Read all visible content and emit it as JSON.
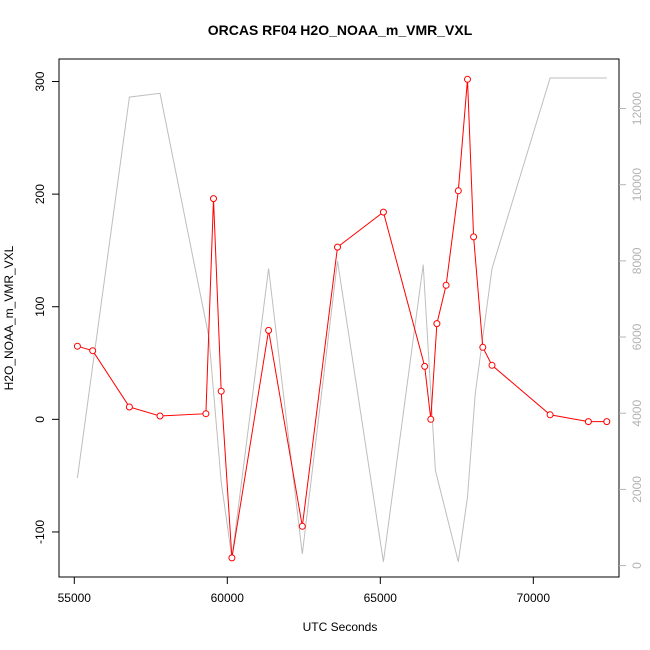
{
  "chart_data": {
    "type": "line",
    "title": "ORCAS RF04 H2O_NOAA_m_VMR_VXL",
    "xlabel": "UTC Seconds",
    "ylabel": "H2O_NOAA_m_VMR_VXL",
    "xlim": [
      54500,
      72800
    ],
    "ylim": [
      -140,
      320
    ],
    "y2lim": [
      -300,
      13300
    ],
    "x_ticks": [
      55000,
      60000,
      65000,
      70000
    ],
    "y_ticks": [
      -100,
      0,
      100,
      200,
      300
    ],
    "y2_ticks": [
      0,
      2000,
      4000,
      6000,
      8000,
      10000,
      12000
    ],
    "grid": false,
    "series": [
      {
        "axis": "left",
        "color": "#ff0000",
        "marker": "open-circle",
        "x": [
          55100,
          55600,
          56800,
          57800,
          59300,
          59550,
          59800,
          60150,
          61350,
          62450,
          63600,
          65100,
          66450,
          66650,
          66850,
          67150,
          67550,
          67850,
          68050,
          68350,
          68650,
          70550,
          71800,
          72400
        ],
        "y": [
          65,
          61,
          11,
          3,
          5,
          196,
          25,
          -123,
          79,
          -95,
          153,
          184,
          47,
          0,
          85,
          119,
          203,
          302,
          162,
          64,
          48,
          4,
          -2,
          -2
        ]
      },
      {
        "axis": "right",
        "color": "#bebebe",
        "marker": "none",
        "x": [
          55100,
          56800,
          57800,
          59400,
          59800,
          60150,
          61350,
          62450,
          63600,
          65100,
          66400,
          66800,
          67550,
          67850,
          68100,
          68650,
          70550,
          72400
        ],
        "y": [
          2300,
          12300,
          12400,
          6000,
          2200,
          200,
          7800,
          300,
          8000,
          100,
          7900,
          2500,
          100,
          1800,
          4500,
          7800,
          12800,
          12800
        ]
      }
    ]
  }
}
